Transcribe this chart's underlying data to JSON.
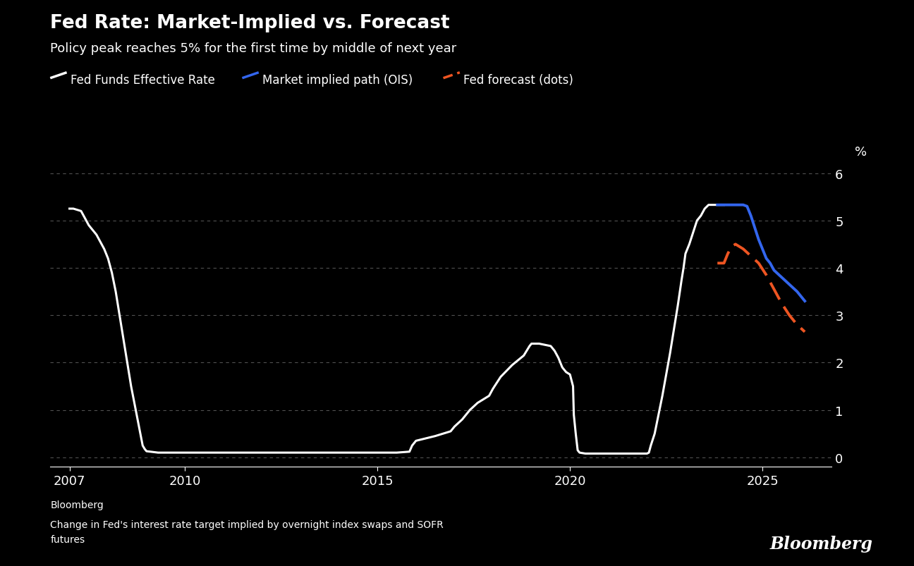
{
  "title": "Fed Rate: Market-Implied vs. Forecast",
  "subtitle": "Policy peak reaches 5% for the first time by middle of next year",
  "background_color": "#000000",
  "text_color": "#ffffff",
  "grid_color": "#666666",
  "ylabel": "%",
  "ylim": [
    -0.2,
    6.2
  ],
  "yticks": [
    0,
    1,
    2,
    3,
    4,
    5,
    6
  ],
  "xticks": [
    2007,
    2010,
    2015,
    2020,
    2025
  ],
  "source_line1": "Bloomberg",
  "source_line2": "Change in Fed's interest rate target implied by overnight index swaps and SOFR",
  "source_line3": "futures",
  "bloomberg_label": "Bloomberg",
  "legend_items": [
    {
      "label": "Fed Funds Effective Rate",
      "color": "#ffffff",
      "linestyle": "solid"
    },
    {
      "label": "Market implied path (OIS)",
      "color": "#3366ee",
      "linestyle": "solid"
    },
    {
      "label": "Fed forecast (dots)",
      "color": "#ee5522",
      "linestyle": "dashed"
    }
  ],
  "fed_funds_x": [
    2007.0,
    2007.05,
    2007.1,
    2007.3,
    2007.5,
    2007.7,
    2007.9,
    2008.0,
    2008.1,
    2008.2,
    2008.4,
    2008.6,
    2008.9,
    2008.95,
    2009.0,
    2009.1,
    2009.3,
    2009.5,
    2010.0,
    2011.0,
    2012.0,
    2013.0,
    2014.0,
    2015.0,
    2015.5,
    2015.83,
    2015.9,
    2016.0,
    2016.5,
    2016.9,
    2017.0,
    2017.2,
    2017.4,
    2017.6,
    2017.9,
    2018.0,
    2018.2,
    2018.5,
    2018.8,
    2018.95,
    2019.0,
    2019.2,
    2019.5,
    2019.6,
    2019.7,
    2019.8,
    2019.9,
    2020.0,
    2020.08,
    2020.1,
    2020.15,
    2020.2,
    2020.25,
    2020.4,
    2020.6,
    2021.0,
    2021.5,
    2022.0,
    2022.05,
    2022.1,
    2022.2,
    2022.3,
    2022.4,
    2022.5,
    2022.6,
    2022.7,
    2022.8,
    2022.9,
    2022.95,
    2023.0,
    2023.1,
    2023.2,
    2023.3,
    2023.4,
    2023.5,
    2023.6,
    2023.7,
    2023.8,
    2023.9,
    2024.0
  ],
  "fed_funds_y": [
    5.25,
    5.25,
    5.25,
    5.2,
    4.9,
    4.7,
    4.4,
    4.2,
    3.9,
    3.5,
    2.5,
    1.5,
    0.25,
    0.18,
    0.13,
    0.12,
    0.1,
    0.1,
    0.1,
    0.1,
    0.1,
    0.1,
    0.1,
    0.1,
    0.1,
    0.12,
    0.25,
    0.35,
    0.45,
    0.55,
    0.65,
    0.8,
    1.0,
    1.15,
    1.3,
    1.45,
    1.7,
    1.95,
    2.15,
    2.35,
    2.4,
    2.4,
    2.35,
    2.25,
    2.1,
    1.9,
    1.8,
    1.75,
    1.5,
    0.9,
    0.5,
    0.15,
    0.1,
    0.08,
    0.08,
    0.08,
    0.08,
    0.08,
    0.1,
    0.25,
    0.5,
    0.9,
    1.3,
    1.75,
    2.2,
    2.7,
    3.2,
    3.75,
    4.0,
    4.3,
    4.5,
    4.75,
    5.0,
    5.1,
    5.25,
    5.33,
    5.33,
    5.33,
    5.33,
    5.33
  ],
  "ois_x": [
    2023.83,
    2023.9,
    2024.0,
    2024.1,
    2024.2,
    2024.3,
    2024.4,
    2024.5,
    2024.6,
    2024.7,
    2024.8,
    2024.9,
    2025.0,
    2025.1,
    2025.2,
    2025.3,
    2025.5,
    2025.7,
    2025.9,
    2026.1
  ],
  "ois_y": [
    5.33,
    5.33,
    5.33,
    5.33,
    5.33,
    5.33,
    5.33,
    5.33,
    5.3,
    5.1,
    4.85,
    4.6,
    4.4,
    4.2,
    4.1,
    3.95,
    3.8,
    3.65,
    3.5,
    3.3
  ],
  "dots_x": [
    2023.83,
    2023.9,
    2024.0,
    2024.1,
    2024.2,
    2024.3,
    2024.5,
    2024.7,
    2024.9,
    2025.1,
    2025.3,
    2025.5,
    2025.7,
    2025.9,
    2026.1
  ],
  "dots_y": [
    4.1,
    4.1,
    4.1,
    4.3,
    4.45,
    4.5,
    4.4,
    4.25,
    4.1,
    3.85,
    3.55,
    3.25,
    3.0,
    2.8,
    2.65
  ]
}
